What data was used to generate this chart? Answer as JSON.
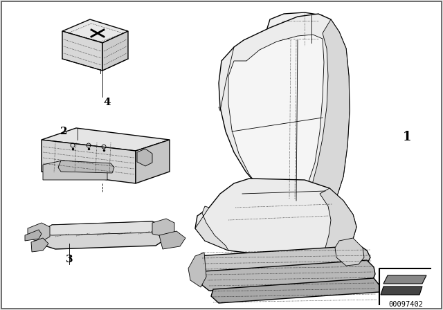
{
  "bg_color": "#e8e8e8",
  "inner_bg": "#ffffff",
  "border_color": "#000000",
  "line_color": "#000000",
  "part_number": "00097402",
  "figsize": [
    6.4,
    4.48
  ],
  "dpi": 100
}
